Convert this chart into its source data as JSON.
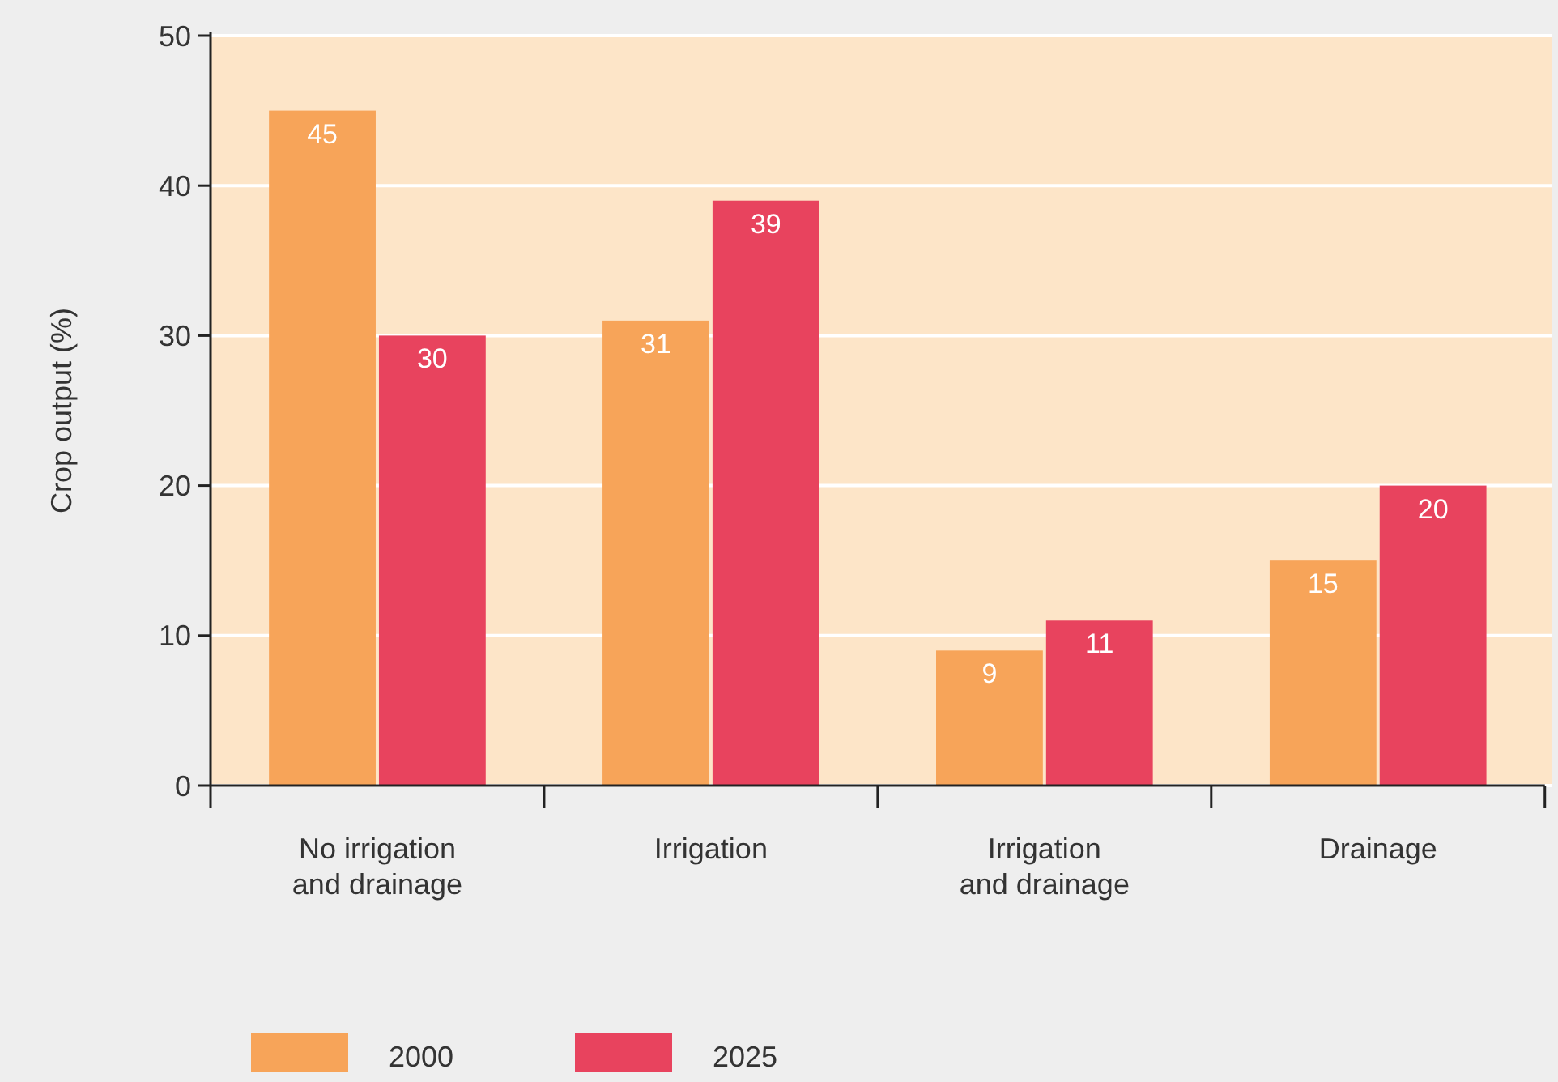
{
  "chart_data": {
    "type": "bar",
    "ylabel": "Crop output (%)",
    "categories": [
      "No irrigation\nand drainage",
      "Irrigation",
      "Irrigation\nand drainage",
      "Drainage"
    ],
    "series": [
      {
        "name": "2000",
        "color": "#f7a459",
        "values": [
          45,
          31,
          9,
          15
        ]
      },
      {
        "name": "2025",
        "color": "#e8435e",
        "values": [
          30,
          39,
          11,
          20
        ]
      }
    ],
    "ylim": [
      0,
      50
    ],
    "yticks": [
      0,
      10,
      20,
      30,
      40,
      50
    ],
    "grid": "y",
    "data_labels": true,
    "legend": "bottom left"
  }
}
